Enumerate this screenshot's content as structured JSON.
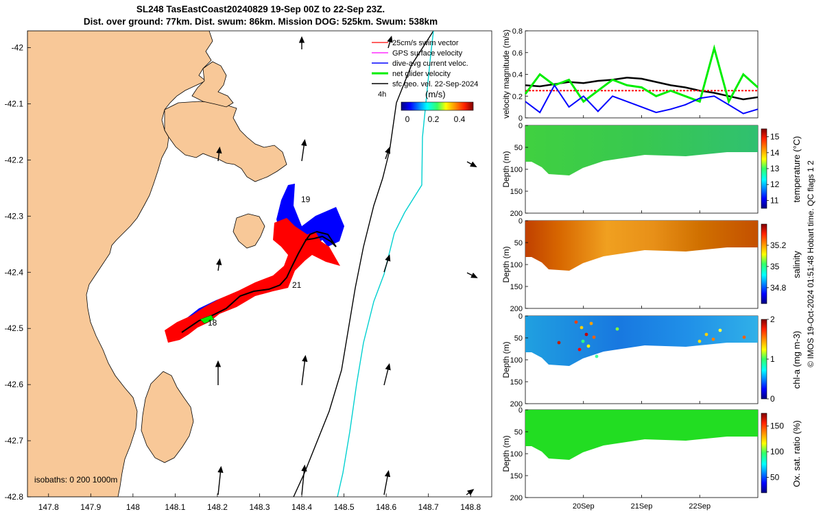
{
  "header": {
    "title_line1": "SL248 TasEastCoast20240829 19-Sep 00Z to 22-Sep 23Z.",
    "title_line2": "Dist. over ground: 77km. Dist. swum: 86km. Mission DOG: 525km. Swum: 538km"
  },
  "colors": {
    "land": "#f8c898",
    "sea": "#ffffff",
    "glider_track": "#000000",
    "swim_vector": "#ff0000",
    "gps_velocity": "#ff00ff",
    "current": "#0000ff",
    "net_velocity": "#00ee00",
    "isobath_200": "#000000",
    "isobath_1000": "#00d0d0"
  },
  "map": {
    "xticks": [
      "147.8",
      "147.9",
      "148",
      "148.1",
      "148.2",
      "148.3",
      "148.4",
      "148.5",
      "148.6",
      "148.7",
      "148.8"
    ],
    "yticks": [
      "-42",
      "-42.1",
      "-42.2",
      "-42.3",
      "-42.4",
      "-42.5",
      "-42.6",
      "-42.7",
      "-42.8"
    ],
    "day_labels": [
      "19",
      "21",
      "18"
    ],
    "legend": [
      {
        "label": "25cm/s swim vector",
        "color": "#ff0000"
      },
      {
        "label": "GPS surface velocity",
        "color": "#ff00ff"
      },
      {
        "label": "dive-avg current veloc.",
        "color": "#0000ff"
      },
      {
        "label": "net glider velocity",
        "color": "#00ee00"
      },
      {
        "label": "sfc geo. vel. 22-Sep-2024",
        "color": "#000000"
      }
    ],
    "age_label": "4h",
    "colorbar": {
      "title": "(m/s)",
      "ticks": [
        "0",
        "0.2",
        "0.4"
      ]
    },
    "isobaths_label": "isobaths: 0   200  1000m"
  },
  "chart_data": [
    {
      "type": "line",
      "title": "velocity magnitude",
      "ylabel": "velocity magnitude (m/s)",
      "ylim": [
        0,
        0.8
      ],
      "yticks": [
        "0",
        "0.2",
        "0.4",
        "0.6",
        "0.8"
      ],
      "x_days": [
        19.0,
        19.25,
        19.5,
        19.75,
        20.0,
        20.25,
        20.5,
        20.75,
        21.0,
        21.25,
        21.5,
        21.75,
        22.0,
        22.25,
        22.5,
        22.75,
        23.0
      ],
      "series": [
        {
          "name": "sfc geo. vel.",
          "color": "#000000",
          "values": [
            0.3,
            0.29,
            0.31,
            0.33,
            0.32,
            0.34,
            0.35,
            0.37,
            0.36,
            0.33,
            0.3,
            0.28,
            0.25,
            0.23,
            0.2,
            0.17,
            0.19
          ]
        },
        {
          "name": "25cm/s swim vector",
          "color": "#ff0000",
          "values": [
            0.25,
            0.25,
            0.25,
            0.25,
            0.25,
            0.25,
            0.25,
            0.25,
            0.25,
            0.25,
            0.25,
            0.25,
            0.25,
            0.25,
            0.25,
            0.25,
            0.25
          ]
        },
        {
          "name": "net glider velocity",
          "color": "#00ee00",
          "values": [
            0.22,
            0.4,
            0.3,
            0.35,
            0.15,
            0.25,
            0.35,
            0.3,
            0.28,
            0.2,
            0.25,
            0.2,
            0.15,
            0.64,
            0.15,
            0.4,
            0.28
          ]
        },
        {
          "name": "dive-avg current veloc.",
          "color": "#0000ff",
          "values": [
            0.15,
            0.05,
            0.3,
            0.1,
            0.2,
            0.06,
            0.2,
            0.15,
            0.1,
            0.05,
            0.08,
            0.12,
            0.18,
            0.2,
            0.12,
            0.04,
            0.08
          ]
        }
      ]
    },
    {
      "type": "heatmap",
      "ylabel": "Depth (m)",
      "colorbar_label": "temperature (°C)",
      "yticks": [
        "0",
        "50",
        "100",
        "150",
        "200"
      ],
      "colorbar_ticks": [
        "11",
        "12",
        "13",
        "14",
        "15"
      ]
    },
    {
      "type": "heatmap",
      "ylabel": "Depth (m)",
      "colorbar_label": "salinity",
      "yticks": [
        "0",
        "50",
        "100",
        "150",
        "200"
      ],
      "colorbar_ticks": [
        "34.8",
        "35",
        "35.2"
      ]
    },
    {
      "type": "heatmap",
      "ylabel": "Depth (m)",
      "colorbar_label": "chl-a (mg m-3)",
      "yticks": [
        "0",
        "50",
        "100",
        "150",
        "200"
      ],
      "colorbar_ticks": [
        "0",
        "1",
        "2"
      ]
    },
    {
      "type": "heatmap",
      "ylabel": "Depth (m)",
      "colorbar_label": "Ox. sat. ratio (%)",
      "yticks": [
        "0",
        "50",
        "100",
        "150",
        "200"
      ],
      "colorbar_ticks": [
        "50",
        "100",
        "150"
      ]
    }
  ],
  "time_axis": {
    "labels": [
      "20Sep",
      "21Sep",
      "22Sep"
    ]
  },
  "side_note": "© IMOS 19-Oct-2024 01:51:48 Hobart time. QC flags 1  2"
}
